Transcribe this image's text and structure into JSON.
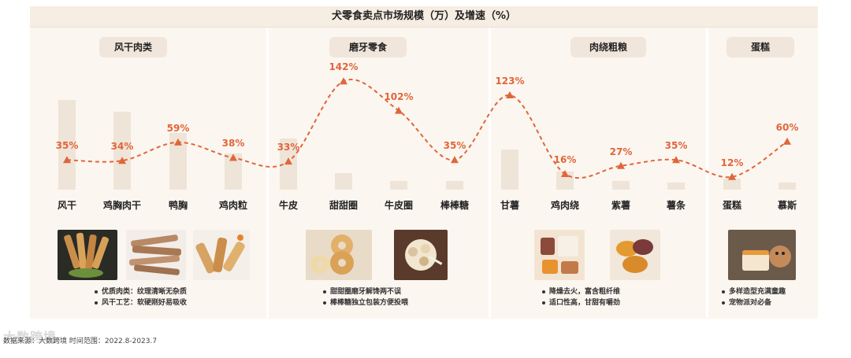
{
  "chart_data": {
    "type": "bar+line",
    "title": "犬零食卖点市场规模（万）及增速（%）",
    "groups": [
      {
        "name": "风干肉类",
        "categories": [
          "风干",
          "鸡胸肉干",
          "鸭胸",
          "鸡肉粒"
        ],
        "notes": [
          "优质肉类：纹理清晰无杂质",
          "风干工艺：软硬刚好易吸收"
        ]
      },
      {
        "name": "磨牙零食",
        "categories": [
          "牛皮",
          "甜甜圈",
          "牛皮圈",
          "棒棒糖"
        ],
        "notes": [
          "甜甜圈磨牙解馋两不误",
          "棒棒糖独立包装方便投喂"
        ]
      },
      {
        "name": "肉绕粗粮",
        "categories": [
          "甘薯",
          "鸡肉绕",
          "紫薯",
          "薯条"
        ],
        "notes": [
          "降燥去火，富含粗纤维",
          "适口性高，甘甜有嚼劲"
        ]
      },
      {
        "name": "蛋糕",
        "categories": [
          "蛋糕",
          "慕斯"
        ],
        "notes": [
          "多样造型充满童趣",
          "宠物派对必备"
        ]
      }
    ],
    "categories": [
      "风干",
      "鸡胸肉干",
      "鸭胸",
      "鸡肉粒",
      "牛皮",
      "甜甜圈",
      "牛皮圈",
      "棒棒糖",
      "甘薯",
      "鸡肉绕",
      "紫薯",
      "薯条",
      "蛋糕",
      "慕斯"
    ],
    "series": [
      {
        "name": "市场规模（万）",
        "kind": "bar",
        "values": [
          100,
          87,
          63,
          40,
          57,
          18,
          10,
          10,
          45,
          20,
          10,
          8,
          12,
          8
        ]
      },
      {
        "name": "增速（%）",
        "kind": "line",
        "values": [
          35,
          34,
          59,
          38,
          33,
          142,
          102,
          35,
          123,
          16,
          27,
          35,
          12,
          60
        ]
      }
    ],
    "labels": [
      "35%",
      "34%",
      "59%",
      "38%",
      "33%",
      "142%",
      "102%",
      "35%",
      "123%",
      "16%",
      "27%",
      "35%",
      "12%",
      "60%"
    ],
    "bar_color": "#efe4d8",
    "line_color": "#e0663a"
  },
  "source": "数据来源：大数跨境 时间范围：2022.8-2023.7",
  "watermark": "大数跨境"
}
